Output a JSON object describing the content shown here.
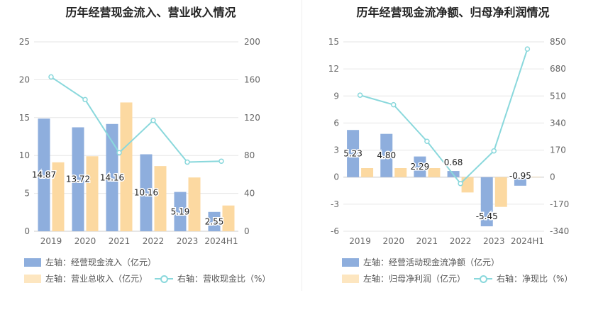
{
  "colors": {
    "bar1": "#8eaedd",
    "bar2": "#fcd9a1",
    "line": "#8ad8dc",
    "grid": "#e6e6e6",
    "axis_text": "#666666"
  },
  "chart_data": [
    {
      "type": "bar",
      "title": "历年经营现金流入、营业收入情况",
      "categories": [
        "2019",
        "2020",
        "2021",
        "2022",
        "2023",
        "2024H1"
      ],
      "y_left": {
        "min": 0,
        "max": 25,
        "ticks": [
          "0",
          "5",
          "10",
          "15",
          "20",
          "25"
        ]
      },
      "y_right": {
        "min": 0,
        "max": 200,
        "ticks": [
          "0",
          "40",
          "80",
          "120",
          "160",
          "200"
        ]
      },
      "series": [
        {
          "name": "左轴：经营现金流入（亿元）",
          "type": "bar",
          "axis": "left",
          "values": [
            14.87,
            13.72,
            14.16,
            10.16,
            5.19,
            2.55
          ],
          "labels": [
            "14.87",
            "13.72",
            "14.16",
            "10.16",
            "5.19",
            "2.55"
          ]
        },
        {
          "name": "左轴：营业总收入（亿元）",
          "type": "bar",
          "axis": "left",
          "values": [
            9.1,
            9.9,
            17.0,
            8.6,
            7.1,
            3.4
          ]
        },
        {
          "name": "右轴：营收现金比（%）",
          "type": "line",
          "axis": "right",
          "values": [
            163,
            139,
            83,
            117,
            73,
            74
          ]
        }
      ]
    },
    {
      "type": "bar",
      "title": "历年经营现金流净额、归母净利润情况",
      "categories": [
        "2019",
        "2020",
        "2021",
        "2022",
        "2023",
        "2024H1"
      ],
      "y_left": {
        "min": -6,
        "max": 15,
        "ticks": [
          "-6",
          "-3",
          "0",
          "3",
          "6",
          "9",
          "12",
          "15"
        ]
      },
      "y_right": {
        "min": -340,
        "max": 850,
        "ticks": [
          "-340",
          "-170",
          "0",
          "170",
          "340",
          "510",
          "680",
          "850"
        ]
      },
      "series": [
        {
          "name": "左轴：经营活动现金流净额（亿元）",
          "type": "bar",
          "axis": "left",
          "values": [
            5.23,
            4.8,
            2.29,
            0.68,
            -5.45,
            -0.95
          ],
          "labels": [
            "5.23",
            "4.80",
            "2.29",
            "0.68",
            "-5.45",
            "-0.95"
          ]
        },
        {
          "name": "左轴：归母净利润（亿元）",
          "type": "bar",
          "axis": "left",
          "values": [
            1.0,
            1.0,
            1.0,
            -1.7,
            -3.3,
            0.05
          ]
        },
        {
          "name": "右轴：净现比（%）",
          "type": "line",
          "axis": "right",
          "values": [
            515,
            455,
            225,
            -40,
            165,
            805
          ]
        }
      ]
    }
  ]
}
